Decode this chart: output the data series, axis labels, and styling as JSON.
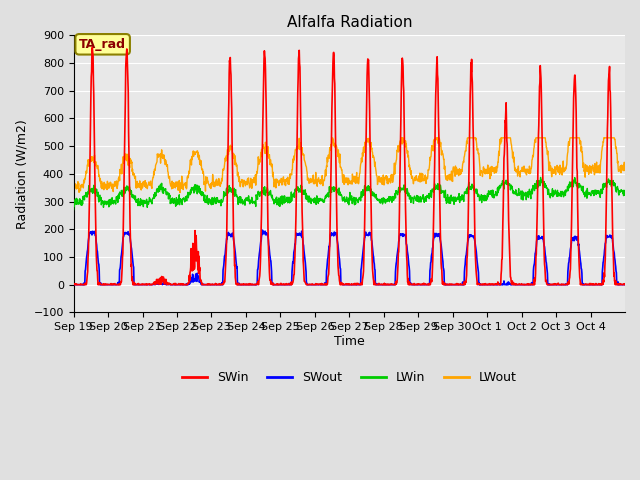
{
  "title": "Alfalfa Radiation",
  "xlabel": "Time",
  "ylabel": "Radiation (W/m2)",
  "ylim": [
    -100,
    900
  ],
  "annotation_text": "TA_rad",
  "annotation_color": "#8B0000",
  "annotation_bg": "#FFFF99",
  "annotation_border": "#8B8000",
  "tick_labels": [
    "Sep 19",
    "Sep 20",
    "Sep 21",
    "Sep 22",
    "Sep 23",
    "Sep 24",
    "Sep 25",
    "Sep 26",
    "Sep 27",
    "Sep 28",
    "Sep 29",
    "Sep 30",
    "Oct 1",
    "Oct 2",
    "Oct 3",
    "Oct 4"
  ],
  "legend_labels": [
    "SWin",
    "SWout",
    "LWin",
    "LWout"
  ],
  "legend_colors": [
    "#FF0000",
    "#0000FF",
    "#00CC00",
    "#FFA500"
  ],
  "background_color": "#E0E0E0",
  "plot_bg_color": "#E8E8E8",
  "grid_color": "#FFFFFF",
  "n_days": 16,
  "dt_hours": 0.25
}
